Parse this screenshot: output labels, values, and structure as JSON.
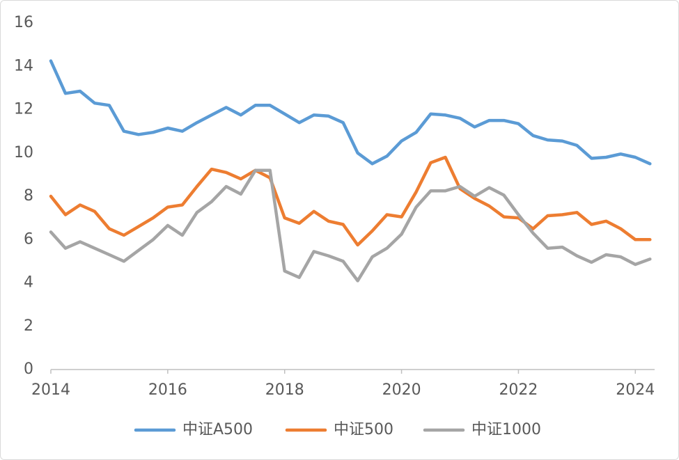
{
  "chart_data": {
    "type": "line",
    "x": [
      2014,
      2014.25,
      2014.5,
      2014.75,
      2015,
      2015.25,
      2015.5,
      2015.75,
      2016,
      2016.25,
      2016.5,
      2016.75,
      2017,
      2017.25,
      2017.5,
      2017.75,
      2018,
      2018.25,
      2018.5,
      2018.75,
      2019,
      2019.25,
      2019.5,
      2019.75,
      2020,
      2020.25,
      2020.5,
      2020.75,
      2021,
      2021.25,
      2021.5,
      2021.75,
      2022,
      2022.25,
      2022.5,
      2022.75,
      2023,
      2023.25,
      2023.5,
      2023.75,
      2024,
      2024.25
    ],
    "series": [
      {
        "name": "中证A500",
        "color": "#5b9bd5",
        "values": [
          14.25,
          12.75,
          12.85,
          12.3,
          12.2,
          11.0,
          10.85,
          10.95,
          11.15,
          11.0,
          11.4,
          11.75,
          12.1,
          11.75,
          12.2,
          12.2,
          11.8,
          11.4,
          11.75,
          11.7,
          11.4,
          10.0,
          9.5,
          9.85,
          10.55,
          10.95,
          11.8,
          11.75,
          11.6,
          11.2,
          11.5,
          11.5,
          11.35,
          10.8,
          10.6,
          10.55,
          10.35,
          9.75,
          9.8,
          9.95,
          9.8,
          9.5
        ]
      },
      {
        "name": "中证500",
        "color": "#ed7d31",
        "values": [
          8.0,
          7.15,
          7.6,
          7.3,
          6.5,
          6.2,
          6.6,
          7.0,
          7.5,
          7.6,
          8.45,
          9.25,
          9.1,
          8.8,
          9.2,
          8.85,
          7.0,
          6.75,
          7.3,
          6.85,
          6.7,
          5.75,
          6.4,
          7.15,
          7.05,
          8.2,
          9.55,
          9.8,
          8.35,
          7.9,
          7.55,
          7.05,
          7.0,
          6.5,
          7.1,
          7.15,
          7.25,
          6.7,
          6.85,
          6.5,
          6.0,
          6.0
        ]
      },
      {
        "name": "中证1000",
        "color": "#a5a5a5",
        "values": [
          6.35,
          5.6,
          5.9,
          5.6,
          5.3,
          5.0,
          5.5,
          6.0,
          6.65,
          6.2,
          7.25,
          7.75,
          8.45,
          8.1,
          9.2,
          9.2,
          4.55,
          4.25,
          5.45,
          5.25,
          5.0,
          4.1,
          5.2,
          5.6,
          6.25,
          7.5,
          8.25,
          8.25,
          8.45,
          8.0,
          8.4,
          8.05,
          7.15,
          6.3,
          5.6,
          5.65,
          5.25,
          4.95,
          5.3,
          5.2,
          4.85,
          5.1
        ]
      }
    ],
    "xlim": [
      2014,
      2024.33
    ],
    "xticks": [
      2014,
      2016,
      2018,
      2020,
      2022,
      2024
    ],
    "ylim": [
      0,
      16
    ],
    "yticks": [
      0,
      2,
      4,
      6,
      8,
      10,
      12,
      14,
      16
    ],
    "legend": "bottom"
  }
}
